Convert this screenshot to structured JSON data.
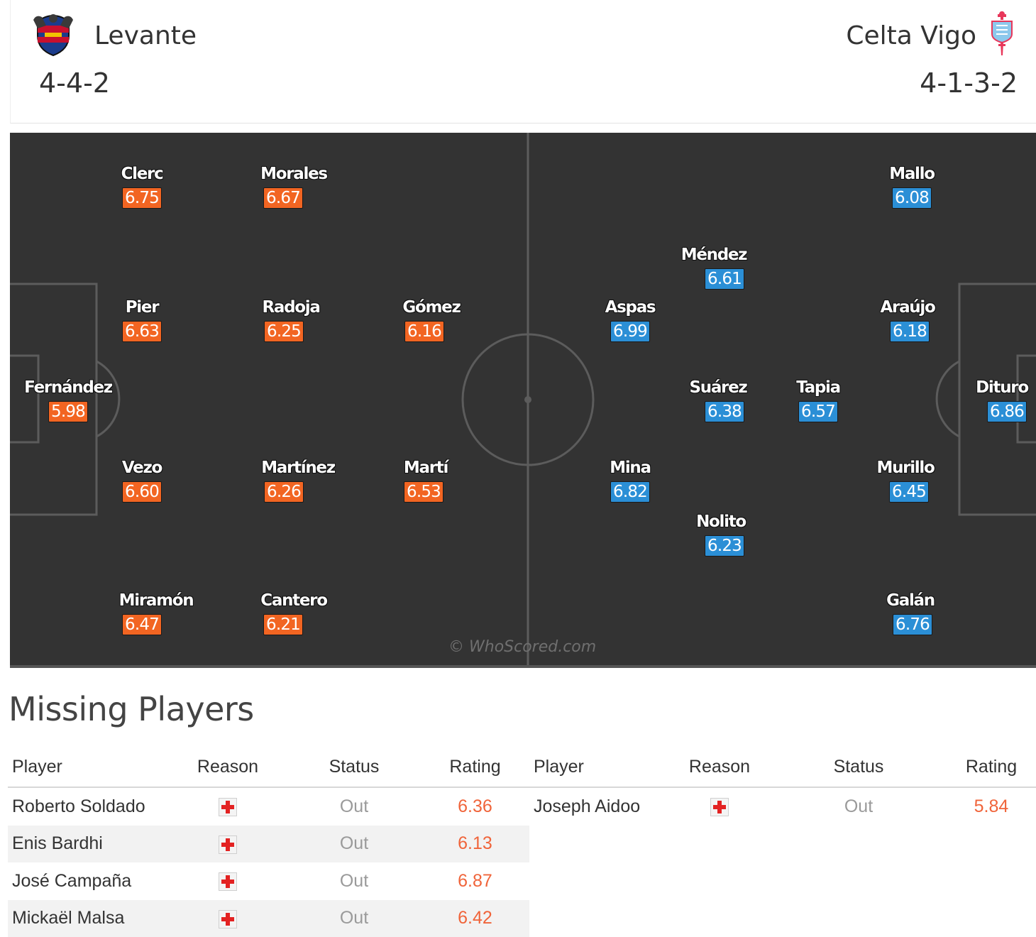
{
  "header": {
    "home": {
      "name": "Levante",
      "formation": "4-4-2",
      "crest_icon": "levante-crest-icon"
    },
    "away": {
      "name": "Celta Vigo",
      "formation": "4-1-3-2",
      "crest_icon": "celta-vigo-crest-icon"
    }
  },
  "pitch": {
    "watermark": "© WhoScored.com",
    "home_color": "#f26522",
    "away_color": "#2b8fd6",
    "home_players": [
      {
        "name": "Fernández",
        "rating": "5.98"
      },
      {
        "name": "Clerc",
        "rating": "6.75"
      },
      {
        "name": "Pier",
        "rating": "6.63"
      },
      {
        "name": "Vezo",
        "rating": "6.60"
      },
      {
        "name": "Miramón",
        "rating": "6.47"
      },
      {
        "name": "Morales",
        "rating": "6.67"
      },
      {
        "name": "Radoja",
        "rating": "6.25"
      },
      {
        "name": "Martínez",
        "rating": "6.26"
      },
      {
        "name": "Cantero",
        "rating": "6.21"
      },
      {
        "name": "Gómez",
        "rating": "6.16"
      },
      {
        "name": "Martí",
        "rating": "6.53"
      }
    ],
    "away_players": [
      {
        "name": "Dituro",
        "rating": "6.86"
      },
      {
        "name": "Mallo",
        "rating": "6.08"
      },
      {
        "name": "Araújo",
        "rating": "6.18"
      },
      {
        "name": "Murillo",
        "rating": "6.45"
      },
      {
        "name": "Galán",
        "rating": "6.76"
      },
      {
        "name": "Tapia",
        "rating": "6.57"
      },
      {
        "name": "Méndez",
        "rating": "6.61"
      },
      {
        "name": "Suárez",
        "rating": "6.38"
      },
      {
        "name": "Nolito",
        "rating": "6.23"
      },
      {
        "name": "Aspas",
        "rating": "6.99"
      },
      {
        "name": "Mina",
        "rating": "6.82"
      }
    ]
  },
  "missing": {
    "title": "Missing Players",
    "columns": {
      "player": "Player",
      "reason": "Reason",
      "status": "Status",
      "rating": "Rating"
    },
    "reason_icon": "injury-icon",
    "home": [
      {
        "player": "Roberto Soldado",
        "status": "Out",
        "rating": "6.36"
      },
      {
        "player": "Enis Bardhi",
        "status": "Out",
        "rating": "6.13"
      },
      {
        "player": "José Campaña",
        "status": "Out",
        "rating": "6.87"
      },
      {
        "player": "Mickaël Malsa",
        "status": "Out",
        "rating": "6.42"
      }
    ],
    "away": [
      {
        "player": "Joseph Aidoo",
        "status": "Out",
        "rating": "5.84"
      }
    ]
  }
}
